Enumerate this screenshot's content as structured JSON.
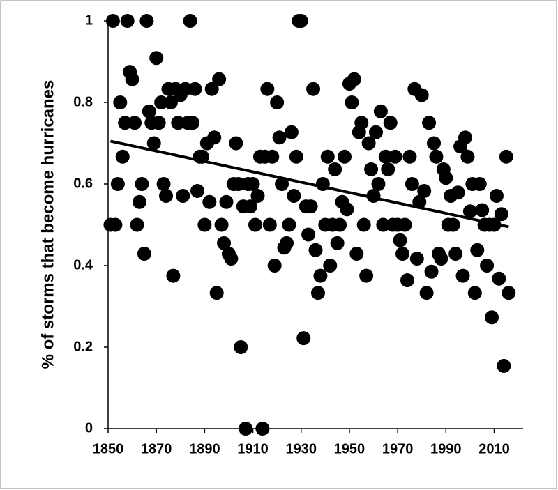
{
  "chart_data": {
    "type": "scatter",
    "y_label": "% of storms that become hurricanes",
    "x": [
      1851,
      1852,
      1853,
      1854,
      1855,
      1856,
      1857,
      1858,
      1859,
      1860,
      1861,
      1862,
      1863,
      1864,
      1865,
      1866,
      1867,
      1868,
      1869,
      1870,
      1871,
      1872,
      1873,
      1874,
      1875,
      1876,
      1877,
      1878,
      1879,
      1880,
      1881,
      1882,
      1883,
      1884,
      1885,
      1886,
      1887,
      1888,
      1889,
      1890,
      1891,
      1892,
      1893,
      1894,
      1895,
      1896,
      1897,
      1898,
      1899,
      1900,
      1901,
      1902,
      1903,
      1904,
      1905,
      1906,
      1907,
      1908,
      1909,
      1910,
      1911,
      1912,
      1913,
      1914,
      1915,
      1916,
      1917,
      1918,
      1919,
      1920,
      1921,
      1922,
      1923,
      1924,
      1925,
      1926,
      1927,
      1928,
      1929,
      1930,
      1931,
      1932,
      1933,
      1934,
      1935,
      1936,
      1937,
      1938,
      1939,
      1940,
      1941,
      1942,
      1943,
      1944,
      1945,
      1946,
      1947,
      1948,
      1949,
      1950,
      1951,
      1952,
      1953,
      1954,
      1955,
      1956,
      1957,
      1958,
      1959,
      1960,
      1961,
      1962,
      1963,
      1964,
      1965,
      1966,
      1967,
      1968,
      1969,
      1970,
      1971,
      1972,
      1973,
      1974,
      1975,
      1976,
      1977,
      1978,
      1979,
      1980,
      1981,
      1982,
      1983,
      1984,
      1985,
      1986,
      1987,
      1988,
      1989,
      1990,
      1991,
      1992,
      1993,
      1994,
      1995,
      1996,
      1997,
      1998,
      1999,
      2000,
      2001,
      2002,
      2003,
      2004,
      2005,
      2006,
      2007,
      2008,
      2009,
      2010,
      2011,
      2012,
      2013,
      2014,
      2015,
      2016
    ],
    "values": [
      0.5,
      1,
      0.5,
      0.6,
      0.8,
      0.667,
      0.75,
      1,
      0.875,
      0.857,
      0.75,
      0.5,
      0.556,
      0.6,
      0.429,
      1,
      0.778,
      0.75,
      0.7,
      0.909,
      0.75,
      0.8,
      0.6,
      0.571,
      0.833,
      0.8,
      0.375,
      0.833,
      0.75,
      0.818,
      0.571,
      0.833,
      0.75,
      1,
      0.75,
      0.833,
      0.583,
      0.667,
      0.667,
      0.5,
      0.7,
      0.556,
      0.833,
      0.714,
      0.333,
      0.857,
      0.5,
      0.455,
      0.556,
      0.429,
      0.417,
      0.6,
      0.7,
      0.6,
      0.2,
      0.545,
      0,
      0.6,
      0.545,
      0.6,
      0.5,
      0.571,
      0.667,
      0,
      0.667,
      0.833,
      0.5,
      0.667,
      0.4,
      0.8,
      0.714,
      0.6,
      0.444,
      0.455,
      0.5,
      0.727,
      0.571,
      0.667,
      1,
      1,
      0.222,
      0.545,
      0.476,
      0.545,
      0.833,
      0.438,
      0.333,
      0.375,
      0.6,
      0.5,
      0.667,
      0.4,
      0.5,
      0.636,
      0.455,
      0.5,
      0.556,
      0.667,
      0.538,
      0.846,
      0.8,
      0.857,
      0.429,
      0.727,
      0.75,
      0.5,
      0.375,
      0.7,
      0.636,
      0.571,
      0.727,
      0.6,
      0.778,
      0.5,
      0.667,
      0.636,
      0.75,
      0.5,
      0.667,
      0.5,
      0.462,
      0.429,
      0.5,
      0.364,
      0.667,
      0.6,
      0.833,
      0.417,
      0.556,
      0.818,
      0.583,
      0.333,
      0.75,
      0.385,
      0.7,
      0.667,
      0.429,
      0.417,
      0.636,
      0.615,
      0.5,
      0.571,
      0.5,
      0.429,
      0.579,
      0.692,
      0.375,
      0.714,
      0.667,
      0.533,
      0.6,
      0.333,
      0.438,
      0.6,
      0.536,
      0.5,
      0.4,
      0.5,
      0.273,
      0.5,
      0.571,
      0.368,
      0.526,
      0.154,
      0.667,
      0.333
    ],
    "color": "#000000",
    "trendline": {
      "x": [
        1851,
        2016
      ],
      "values": [
        0.705,
        0.495
      ],
      "color": "#000000"
    },
    "xlim": [
      1850,
      2022
    ],
    "xticks": [
      1850,
      1870,
      1890,
      1910,
      1930,
      1950,
      1970,
      1990,
      2010
    ],
    "ylim": [
      0,
      1
    ],
    "yticks": [
      0,
      0.2,
      0.4,
      0.6,
      0.8,
      1
    ],
    "grid": false
  }
}
